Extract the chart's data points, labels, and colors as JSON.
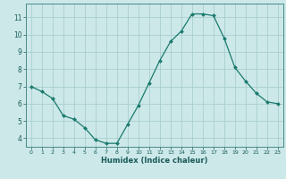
{
  "x": [
    0,
    1,
    2,
    3,
    4,
    5,
    6,
    7,
    8,
    9,
    10,
    11,
    12,
    13,
    14,
    15,
    16,
    17,
    18,
    19,
    20,
    21,
    22,
    23
  ],
  "y": [
    7.0,
    6.7,
    6.3,
    5.3,
    5.1,
    4.6,
    3.9,
    3.7,
    3.7,
    4.8,
    5.9,
    7.2,
    8.5,
    9.6,
    10.2,
    11.2,
    11.2,
    11.1,
    9.8,
    8.1,
    7.3,
    6.6,
    6.1,
    6.0
  ],
  "xlabel": "Humidex (Indice chaleur)",
  "ylim": [
    3.5,
    11.8
  ],
  "xlim": [
    -0.5,
    23.5
  ],
  "yticks": [
    4,
    5,
    6,
    7,
    8,
    9,
    10,
    11
  ],
  "xticks": [
    0,
    1,
    2,
    3,
    4,
    5,
    6,
    7,
    8,
    9,
    10,
    11,
    12,
    13,
    14,
    15,
    16,
    17,
    18,
    19,
    20,
    21,
    22,
    23
  ],
  "line_color": "#1a7a6e",
  "marker_color": "#1a7a6e",
  "bg_color": "#cce8e8",
  "grid_color": "#aacece",
  "axes_color": "#4a8a8a",
  "tick_label_color": "#1a5a5a",
  "xlabel_color": "#1a5a5a"
}
